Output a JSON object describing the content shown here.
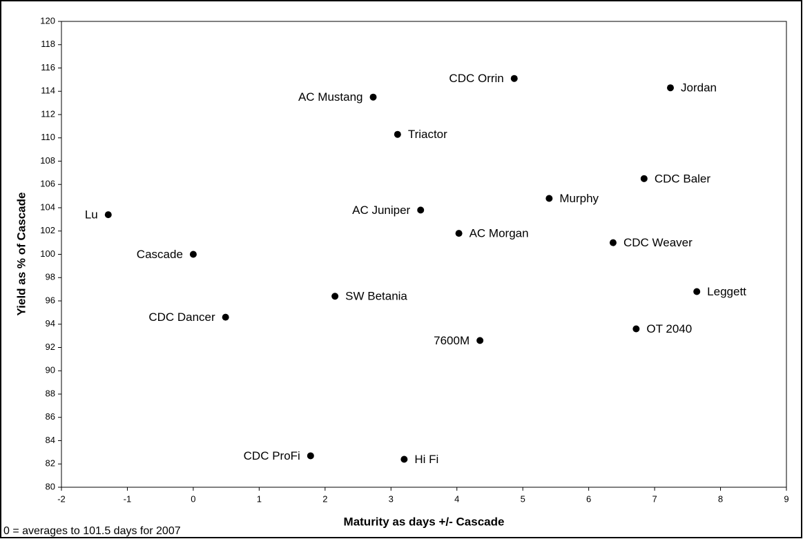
{
  "chart_data": {
    "type": "scatter",
    "xlabel": "Maturity as days +/- Cascade",
    "ylabel": "Yield as % of Cascade",
    "note": "0 = averages to 101.5 days for 2007",
    "color": "#000000",
    "series": [
      {
        "name": null,
        "labels": [
          "Lu",
          "Cascade",
          "CDC Dancer",
          "CDC ProFi",
          "SW Betania",
          "AC Mustang",
          "Triactor",
          "Hi Fi",
          "AC Juniper",
          "AC Morgan",
          "7600M",
          "CDC Orrin",
          "Murphy",
          "CDC Weaver",
          "OT 2040",
          "CDC Baler",
          "Jordan",
          "Leggett"
        ],
        "x": [
          -1.29,
          0,
          0.49,
          1.78,
          2.15,
          2.73,
          3.1,
          3.2,
          3.45,
          4.03,
          4.35,
          4.87,
          5.4,
          6.37,
          6.72,
          6.84,
          7.24,
          7.64
        ],
        "values": [
          103.4,
          100,
          94.6,
          82.7,
          96.4,
          113.5,
          110.3,
          82.4,
          103.8,
          101.8,
          92.6,
          115.1,
          104.8,
          101.0,
          93.6,
          106.5,
          114.3,
          96.8
        ]
      }
    ],
    "xlim": [
      -2,
      9
    ],
    "xticks": [
      -2,
      -1,
      0,
      1,
      2,
      3,
      4,
      5,
      6,
      7,
      8,
      9
    ],
    "ylim": [
      80,
      120
    ],
    "yticks": [
      80,
      82,
      84,
      86,
      88,
      90,
      92,
      94,
      96,
      98,
      100,
      102,
      104,
      106,
      108,
      110,
      112,
      114,
      116,
      118,
      120
    ]
  }
}
